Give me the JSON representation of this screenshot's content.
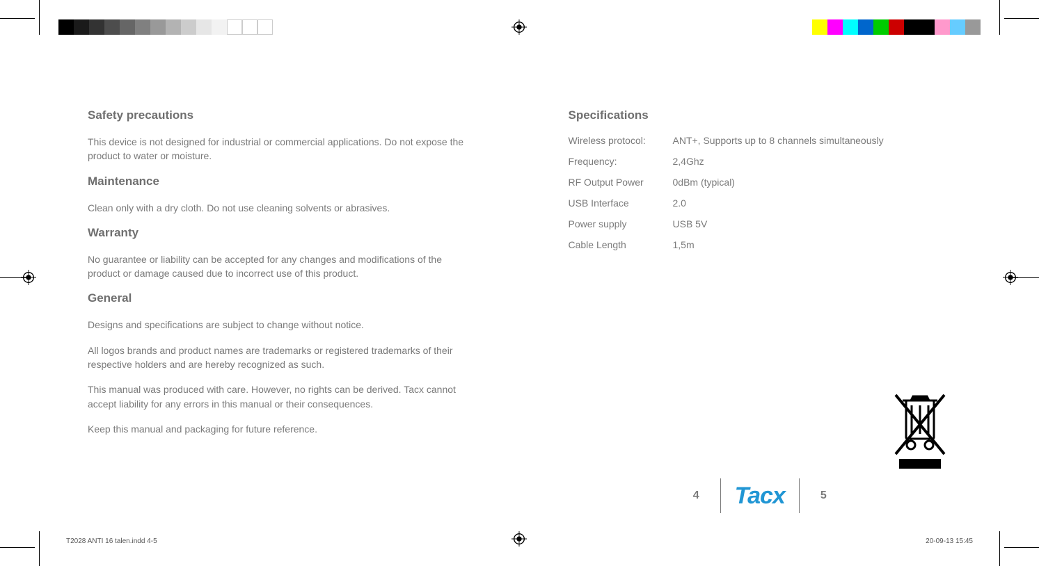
{
  "left": {
    "safety_heading": "Safety precautions",
    "safety_p1": "This device is not designed for industrial or commercial applications. Do not expose the product to water or moisture.",
    "maint_heading": "Maintenance",
    "maint_p1": "Clean only with a dry cloth. Do not use cleaning solvents or abrasives.",
    "warranty_heading": "Warranty",
    "warranty_p1": "No guarantee or liability can be accepted for any changes and modifications of the product or damage caused due to incorrect use of this product.",
    "general_heading": "General",
    "general_p1": "Designs and specifications are subject to change without notice.",
    "general_p2": "All logos brands and product names are trademarks or registered trademarks of their respective holders and are hereby recognized as such.",
    "general_p3": "This manual was produced with care. However, no rights can be derived. Tacx cannot accept liability for any errors in this manual or their consequences.",
    "general_p4": "Keep this manual and packaging for future reference."
  },
  "right": {
    "spec_heading": "Specifications",
    "specs": [
      {
        "label": "Wireless protocol:",
        "value": "ANT+, Supports up to 8 channels simultaneously"
      },
      {
        "label": "Frequency:",
        "value": "2,4Ghz"
      },
      {
        "label": "RF Output Power",
        "value": "0dBm (typical)"
      },
      {
        "label": "USB Interface",
        "value": "2.0"
      },
      {
        "label": "Power supply",
        "value": "USB 5V"
      },
      {
        "label": "Cable Length",
        "value": "1,5m"
      }
    ]
  },
  "footer": {
    "page_left": "4",
    "brand": "Tacx",
    "page_right": "5"
  },
  "slug": {
    "file": "T2028 ANTI 16 talen.indd   4-5",
    "timestamp": "20-09-13   15:45"
  },
  "colorbars": {
    "left_colors": [
      "#000000",
      "#1a1a1a",
      "#333333",
      "#4d4d4d",
      "#666666",
      "#808080",
      "#999999",
      "#b3b3b3",
      "#cccccc",
      "#e6e6e6",
      "#f2f2f2",
      "#ffffff",
      "#ffffff",
      "#ffffff"
    ],
    "right_colors": [
      "#ffff00",
      "#ff00ff",
      "#00ffff",
      "#0066cc",
      "#00cc00",
      "#cc0000",
      "#000000",
      "#000000",
      "#ff99cc",
      "#66ccff",
      "#999999"
    ]
  },
  "style": {
    "heading_color": "#6f6f6f",
    "body_color": "#7a7a7a",
    "brand_color": "#2196d4",
    "background": "#ffffff",
    "heading_fontsize": 17,
    "body_fontsize": 14,
    "brand_fontsize": 34
  }
}
